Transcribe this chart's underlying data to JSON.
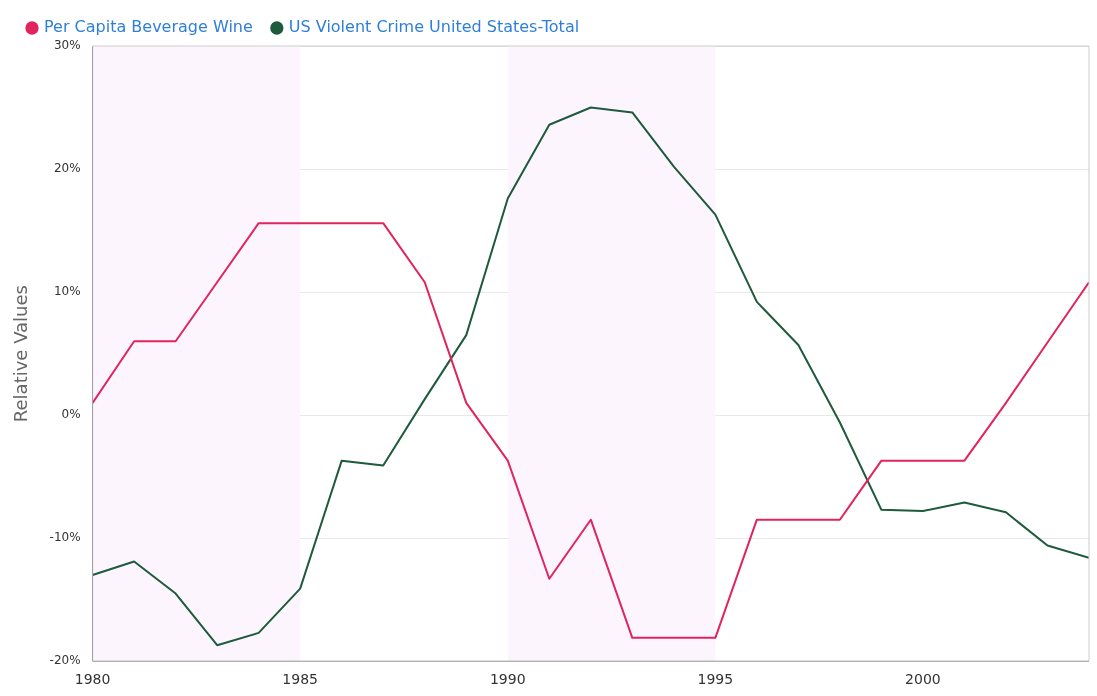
{
  "chart_data": {
    "type": "line",
    "ylabel": "Relative Values",
    "x": [
      1980,
      1981,
      1982,
      1983,
      1984,
      1985,
      1986,
      1987,
      1988,
      1989,
      1990,
      1991,
      1992,
      1993,
      1994,
      1995,
      1996,
      1997,
      1998,
      1999,
      2000,
      2001,
      2002,
      2003,
      2004
    ],
    "series": [
      {
        "name": "Per Capita Beverage Wine",
        "color": "#e0245e",
        "values": [
          1,
          6,
          6,
          10.8,
          15.6,
          15.6,
          15.6,
          15.6,
          10.8,
          1,
          -3.7,
          -13.3,
          -8.5,
          -18.1,
          -18.1,
          -18.1,
          -8.5,
          -8.5,
          -8.5,
          -3.7,
          -3.7,
          -3.7,
          1,
          5.9,
          10.8
        ]
      },
      {
        "name": "US Violent Crime United States-Total",
        "color": "#1e5a3c",
        "values": [
          -13,
          -11.9,
          -14.5,
          -18.7,
          -17.7,
          -14.1,
          -3.7,
          -4.1,
          1.3,
          6.5,
          17.6,
          23.6,
          25,
          24.6,
          20.2,
          16.3,
          9.2,
          5.7,
          -0.6,
          -7.7,
          -7.8,
          -7.1,
          -7.9,
          -10.6,
          -11.6
        ]
      }
    ],
    "xlim": [
      1980,
      2004
    ],
    "xticks": [
      1980,
      1985,
      1990,
      1995,
      2000
    ],
    "ylim": [
      -20,
      30
    ],
    "yticks": [
      {
        "value": -20,
        "label": "-20%"
      },
      {
        "value": -10,
        "label": "-10%"
      },
      {
        "value": 0,
        "label": "0%"
      },
      {
        "value": 10,
        "label": "10%"
      },
      {
        "value": 20,
        "label": "20%"
      },
      {
        "value": 30,
        "label": "30%"
      }
    ],
    "bands": [
      {
        "axis": "x",
        "from": 1980,
        "to": 1985,
        "color": "#fdf5fd"
      },
      {
        "axis": "x",
        "from": 1990,
        "to": 1995,
        "color": "#fdf5fd"
      }
    ],
    "grid": "y",
    "legend": "top",
    "marker": "none",
    "line_style": "solid"
  }
}
